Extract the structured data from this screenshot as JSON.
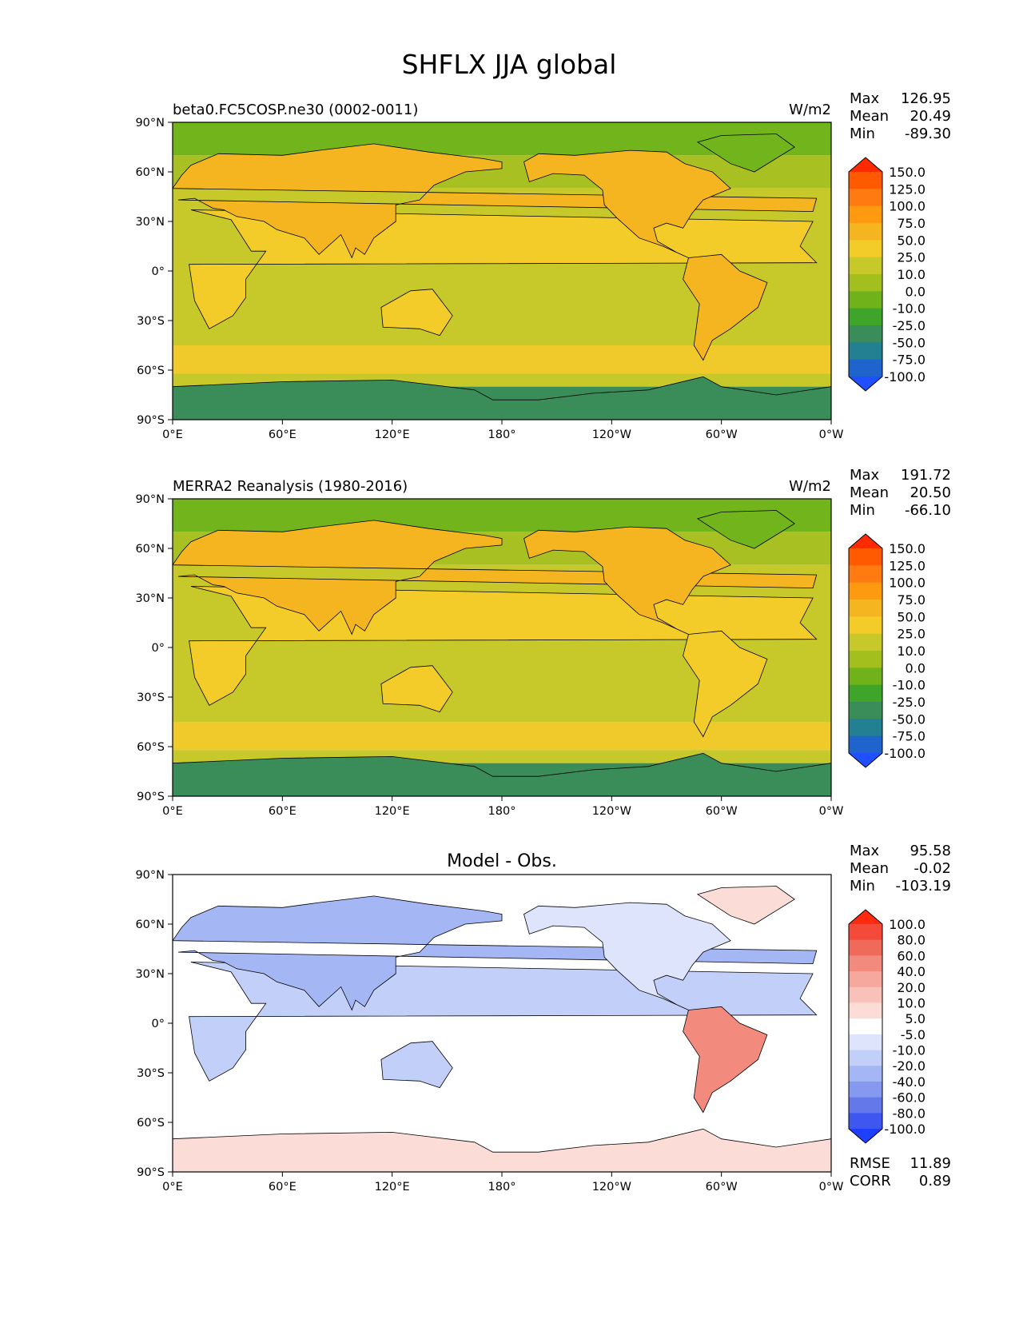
{
  "figure": {
    "title": "SHFLX JJA global"
  },
  "x_ticks": [
    "0°E",
    "60°E",
    "120°E",
    "180°",
    "120°W",
    "60°W",
    "0°W"
  ],
  "y_ticks": [
    "90°N",
    "60°N",
    "30°N",
    "0°",
    "30°S",
    "60°S",
    "90°S"
  ],
  "panels": [
    {
      "left_title": "beta0.FC5COSP.ne30 (0002-0011)",
      "center_title": "",
      "units": "W/m2",
      "stats": [
        {
          "label": "Max",
          "value": "126.95"
        },
        {
          "label": "Mean",
          "value": "20.49"
        },
        {
          "label": "Min",
          "value": "-89.30"
        }
      ],
      "colorbar": {
        "labels": [
          "150.0",
          "125.0",
          "100.0",
          "75.0",
          "50.0",
          "25.0",
          "10.0",
          "0.0",
          "-10.0",
          "-25.0",
          "-50.0",
          "-75.0",
          "-100.0"
        ],
        "colors": [
          "#ff2a00",
          "#ff5a00",
          "#ff7a10",
          "#ff9a10",
          "#f5b520",
          "#f3cc2a",
          "#c7c82a",
          "#a3bf1e",
          "#6fb21a",
          "#3ea52a",
          "#3a8c58",
          "#237f92",
          "#1f63cc",
          "#1f4fff"
        ]
      },
      "footer_stats": []
    },
    {
      "left_title": "MERRA2 Reanalysis (1980-2016)",
      "center_title": "",
      "units": "W/m2",
      "stats": [
        {
          "label": "Max",
          "value": "191.72"
        },
        {
          "label": "Mean",
          "value": "20.50"
        },
        {
          "label": "Min",
          "value": "-66.10"
        }
      ],
      "colorbar": {
        "labels": [
          "150.0",
          "125.0",
          "100.0",
          "75.0",
          "50.0",
          "25.0",
          "10.0",
          "0.0",
          "-10.0",
          "-25.0",
          "-50.0",
          "-75.0",
          "-100.0"
        ],
        "colors": [
          "#ff2a00",
          "#ff5a00",
          "#ff7a10",
          "#ff9a10",
          "#f5b520",
          "#f3cc2a",
          "#c7c82a",
          "#a3bf1e",
          "#6fb21a",
          "#3ea52a",
          "#3a8c58",
          "#237f92",
          "#1f63cc",
          "#1f4fff"
        ]
      },
      "footer_stats": []
    },
    {
      "left_title": "",
      "center_title": "Model - Obs.",
      "units": "",
      "stats": [
        {
          "label": "Max",
          "value": "95.58"
        },
        {
          "label": "Mean",
          "value": "-0.02"
        },
        {
          "label": "Min",
          "value": "-103.19"
        }
      ],
      "colorbar": {
        "labels": [
          "100.0",
          "80.0",
          "60.0",
          "40.0",
          "20.0",
          "10.0",
          "5.0",
          "-5.0",
          "-10.0",
          "-20.0",
          "-40.0",
          "-60.0",
          "-80.0",
          "-100.0"
        ],
        "colors": [
          "#ff2a10",
          "#f44a3a",
          "#f06a5c",
          "#f38a7e",
          "#f6a89e",
          "#f8c2ba",
          "#fcdcd6",
          "#ffffff",
          "#dde4fc",
          "#c2cff8",
          "#a5b6f5",
          "#8499ef",
          "#6478ea",
          "#3e57ef",
          "#1f3fff"
        ]
      },
      "footer_stats": [
        {
          "label": "RMSE",
          "value": "11.89"
        },
        {
          "label": "CORR",
          "value": "0.89"
        }
      ]
    }
  ],
  "chart_data": [
    {
      "type": "heatmap",
      "title": "beta0.FC5COSP.ne30 (0002-0011)",
      "variable": "SHFLX",
      "units": "W/m2",
      "x_range": [
        0,
        360
      ],
      "y_range": [
        -90,
        90
      ],
      "levels": [
        -100,
        -75,
        -50,
        -25,
        -10,
        0,
        10,
        25,
        50,
        75,
        100,
        125,
        150
      ],
      "stats": {
        "max": 126.95,
        "mean": 20.49,
        "min": -89.3
      }
    },
    {
      "type": "heatmap",
      "title": "MERRA2 Reanalysis (1980-2016)",
      "variable": "SHFLX",
      "units": "W/m2",
      "x_range": [
        0,
        360
      ],
      "y_range": [
        -90,
        90
      ],
      "levels": [
        -100,
        -75,
        -50,
        -25,
        -10,
        0,
        10,
        25,
        50,
        75,
        100,
        125,
        150
      ],
      "stats": {
        "max": 191.72,
        "mean": 20.5,
        "min": -66.1
      }
    },
    {
      "type": "heatmap",
      "title": "Model - Obs.",
      "variable": "SHFLX",
      "x_range": [
        0,
        360
      ],
      "y_range": [
        -90,
        90
      ],
      "levels": [
        -100,
        -80,
        -60,
        -40,
        -20,
        -10,
        -5,
        5,
        10,
        20,
        40,
        60,
        80,
        100
      ],
      "stats": {
        "max": 95.58,
        "mean": -0.02,
        "min": -103.19,
        "rmse": 11.89,
        "corr": 0.89
      }
    }
  ]
}
